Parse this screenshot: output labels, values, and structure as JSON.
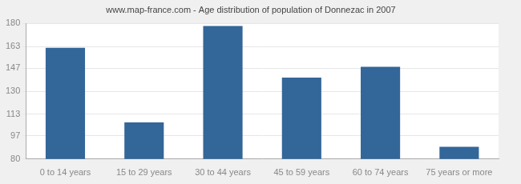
{
  "chart_data": {
    "type": "bar",
    "title": "www.map-france.com - Age distribution of population of Donnezac in 2007",
    "categories": [
      "0 to 14 years",
      "15 to 29 years",
      "30 to 44 years",
      "45 to 59 years",
      "60 to 74 years",
      "75 years or more"
    ],
    "values": [
      162,
      107,
      178,
      140,
      148,
      89
    ],
    "color": "#336699",
    "ylim": [
      80,
      180
    ],
    "yticks": [
      80,
      97,
      113,
      130,
      147,
      163,
      180
    ],
    "grid": true
  }
}
